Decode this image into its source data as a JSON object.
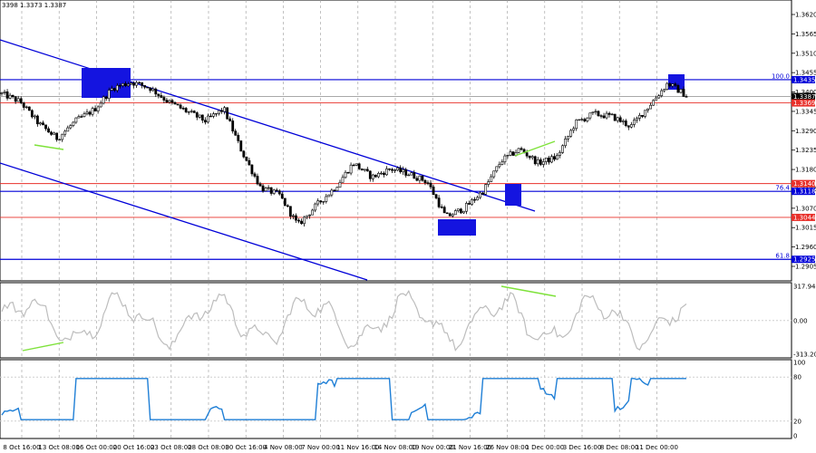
{
  "header": {
    "ohlc_text": "3398 1.3373 1.3387"
  },
  "colors": {
    "background": "#ffffff",
    "grid": "#9a9a9a",
    "candle": "#000000",
    "blue": "#0000d8",
    "red_level": "#e8302a",
    "highlight_box": "#1414e0",
    "divergence": "#7ee23a",
    "oscillator": "#bdbdbd",
    "rsi": "#1f7fd6"
  },
  "chart_data": [
    {
      "type": "candlestick",
      "panel": "price",
      "ylim": [
        1.2905,
        1.366
      ],
      "y_ticks": [
        "1.3620",
        "1.3565",
        "1.3510",
        "1.3455",
        "1.3400",
        "1.3345",
        "1.3290",
        "1.3235",
        "1.3180",
        "1.3125",
        "1.3070",
        "1.3015",
        "1.2960",
        "1.2905"
      ],
      "x_ticks": [
        "8 Oct 16:00",
        "13 Oct 08:00",
        "16 Oct 00:00",
        "20 Oct 16:00",
        "23 Oct 08:00",
        "28 Oct 08:00",
        "30 Oct 16:00",
        "4 Nov 08:00",
        "7 Nov 00:00",
        "11 Nov 16:00",
        "14 Nov 08:00",
        "19 Nov 00:00",
        "21 Nov 16:00",
        "26 Nov 08:00",
        "1 Dec 00:00",
        "3 Dec 16:00",
        "8 Dec 08:00",
        "11 Dec 00:00"
      ],
      "close_path": [
        1.3395,
        1.3372,
        1.331,
        1.3268,
        1.3318,
        1.335,
        1.3412,
        1.3428,
        1.3412,
        1.3372,
        1.3345,
        1.3318,
        1.3352,
        1.3228,
        1.3128,
        1.3108,
        1.3022,
        1.3078,
        1.3128,
        1.3198,
        1.3158,
        1.3182,
        1.3168,
        1.3145,
        1.3045,
        1.307,
        1.3118,
        1.3205,
        1.3238,
        1.3198,
        1.3215,
        1.3312,
        1.3338,
        1.333,
        1.3302,
        1.3362,
        1.3425,
        1.339
      ],
      "levels": [
        {
          "value": 1.3435,
          "label": "1.3435",
          "fib": "100.0",
          "color": "blue"
        },
        {
          "value": 1.3387,
          "label": "1.3387",
          "color": "black"
        },
        {
          "value": 1.3369,
          "label": "1.3369",
          "color": "red"
        },
        {
          "value": 1.314,
          "label": "1.3140",
          "color": "red"
        },
        {
          "value": 1.3118,
          "label": "1.3118",
          "fib": "76.4",
          "color": "blue"
        },
        {
          "value": 1.3044,
          "label": "1.3044",
          "color": "red"
        },
        {
          "value": 1.2925,
          "label": "1.2925",
          "fib": "61.8",
          "color": "blue"
        }
      ]
    },
    {
      "type": "line",
      "panel": "oscillator",
      "y_ticks": [
        "317.9471",
        "0.00",
        "-313.204"
      ],
      "ylim": [
        -313.204,
        317.9471
      ]
    },
    {
      "type": "line",
      "panel": "rsi",
      "y_ticks": [
        "100",
        "80",
        "20",
        "0"
      ],
      "ylim": [
        0,
        100
      ],
      "levels": [
        80,
        20
      ]
    }
  ]
}
